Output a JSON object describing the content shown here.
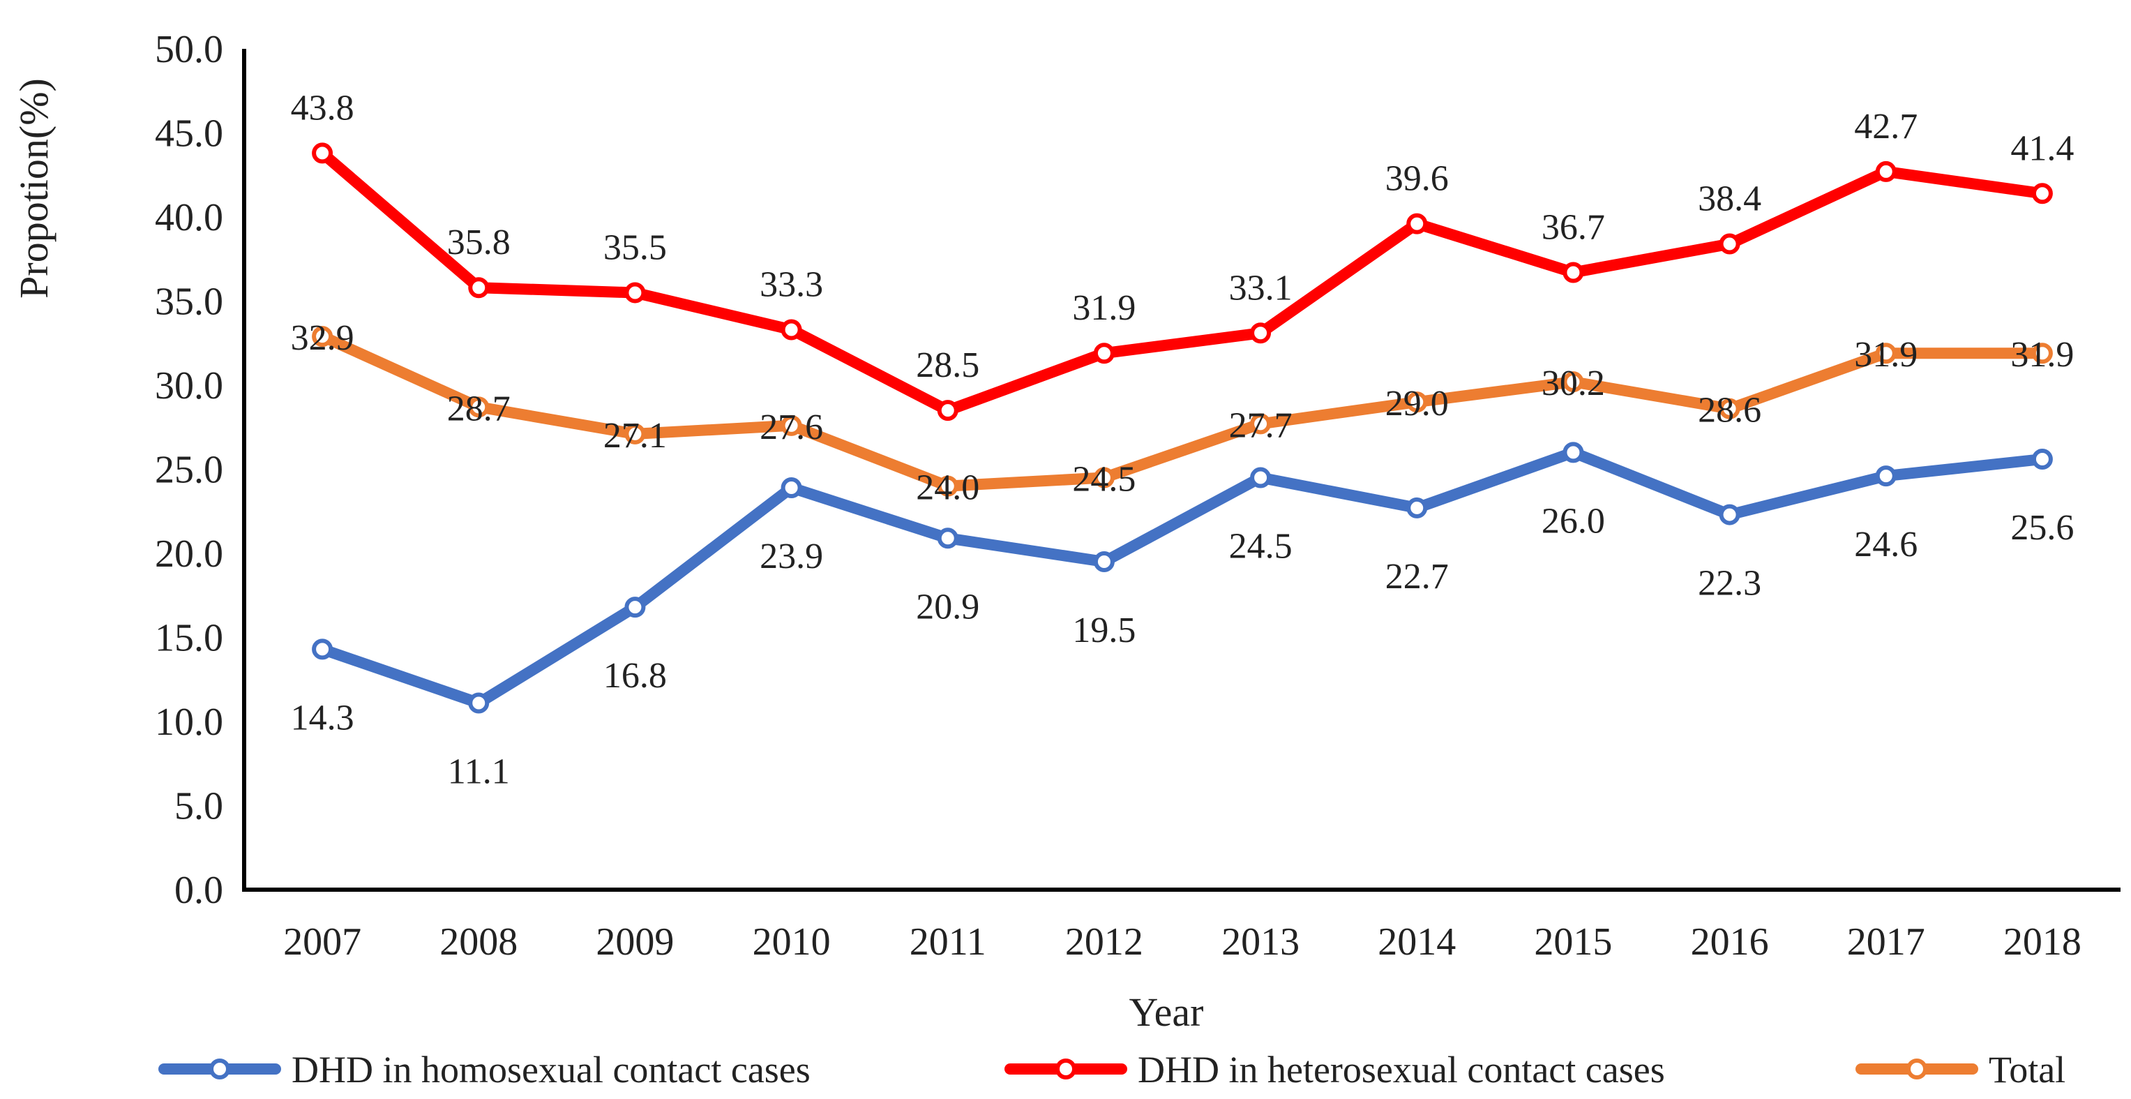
{
  "chart_data": {
    "type": "line",
    "title": "",
    "xlabel": "Year",
    "ylabel": "Propotion(%)",
    "ylim": [
      0,
      50
    ],
    "ystep": 5,
    "y_tick_labels": [
      "0.0",
      "5.0",
      "10.0",
      "15.0",
      "20.0",
      "25.0",
      "30.0",
      "35.0",
      "40.0",
      "45.0",
      "50.0"
    ],
    "grid": false,
    "legend_position": "bottom",
    "categories": [
      "2007",
      "2008",
      "2009",
      "2010",
      "2011",
      "2012",
      "2013",
      "2014",
      "2015",
      "2016",
      "2017",
      "2018"
    ],
    "series": [
      {
        "name": "DHD in homosexual contact cases",
        "color": "#4472C4",
        "label_position": "below",
        "values": [
          14.3,
          11.1,
          16.8,
          23.9,
          20.9,
          19.5,
          24.5,
          22.7,
          26.0,
          22.3,
          24.6,
          25.6
        ],
        "labels": [
          "14.3",
          "11.1",
          "16.8",
          "23.9",
          "20.9",
          "19.5",
          "24.5",
          "22.7",
          "26.0",
          "22.3",
          "24.6",
          "25.6"
        ]
      },
      {
        "name": "DHD in heterosexual contact cases",
        "color": "#FF0000",
        "label_position": "above",
        "values": [
          43.8,
          35.8,
          35.5,
          33.3,
          28.5,
          31.9,
          33.1,
          39.6,
          36.7,
          38.4,
          42.7,
          41.4
        ],
        "labels": [
          "43.8",
          "35.8",
          "35.5",
          "33.3",
          "28.5",
          "31.9",
          "33.1",
          "39.6",
          "36.7",
          "38.4",
          "42.7",
          "41.4"
        ]
      },
      {
        "name": "Total",
        "color": "#ED7D31",
        "label_position": "center",
        "values": [
          32.9,
          28.7,
          27.1,
          27.6,
          24.0,
          24.5,
          27.7,
          29.0,
          30.2,
          28.6,
          31.9,
          31.9
        ],
        "labels": [
          "32.9",
          "28.7",
          "27.1",
          "27.6",
          "24.0",
          "24.5",
          "27.7",
          "29.0",
          "30.2",
          "28.6",
          "31.9",
          "31.9"
        ]
      }
    ]
  }
}
